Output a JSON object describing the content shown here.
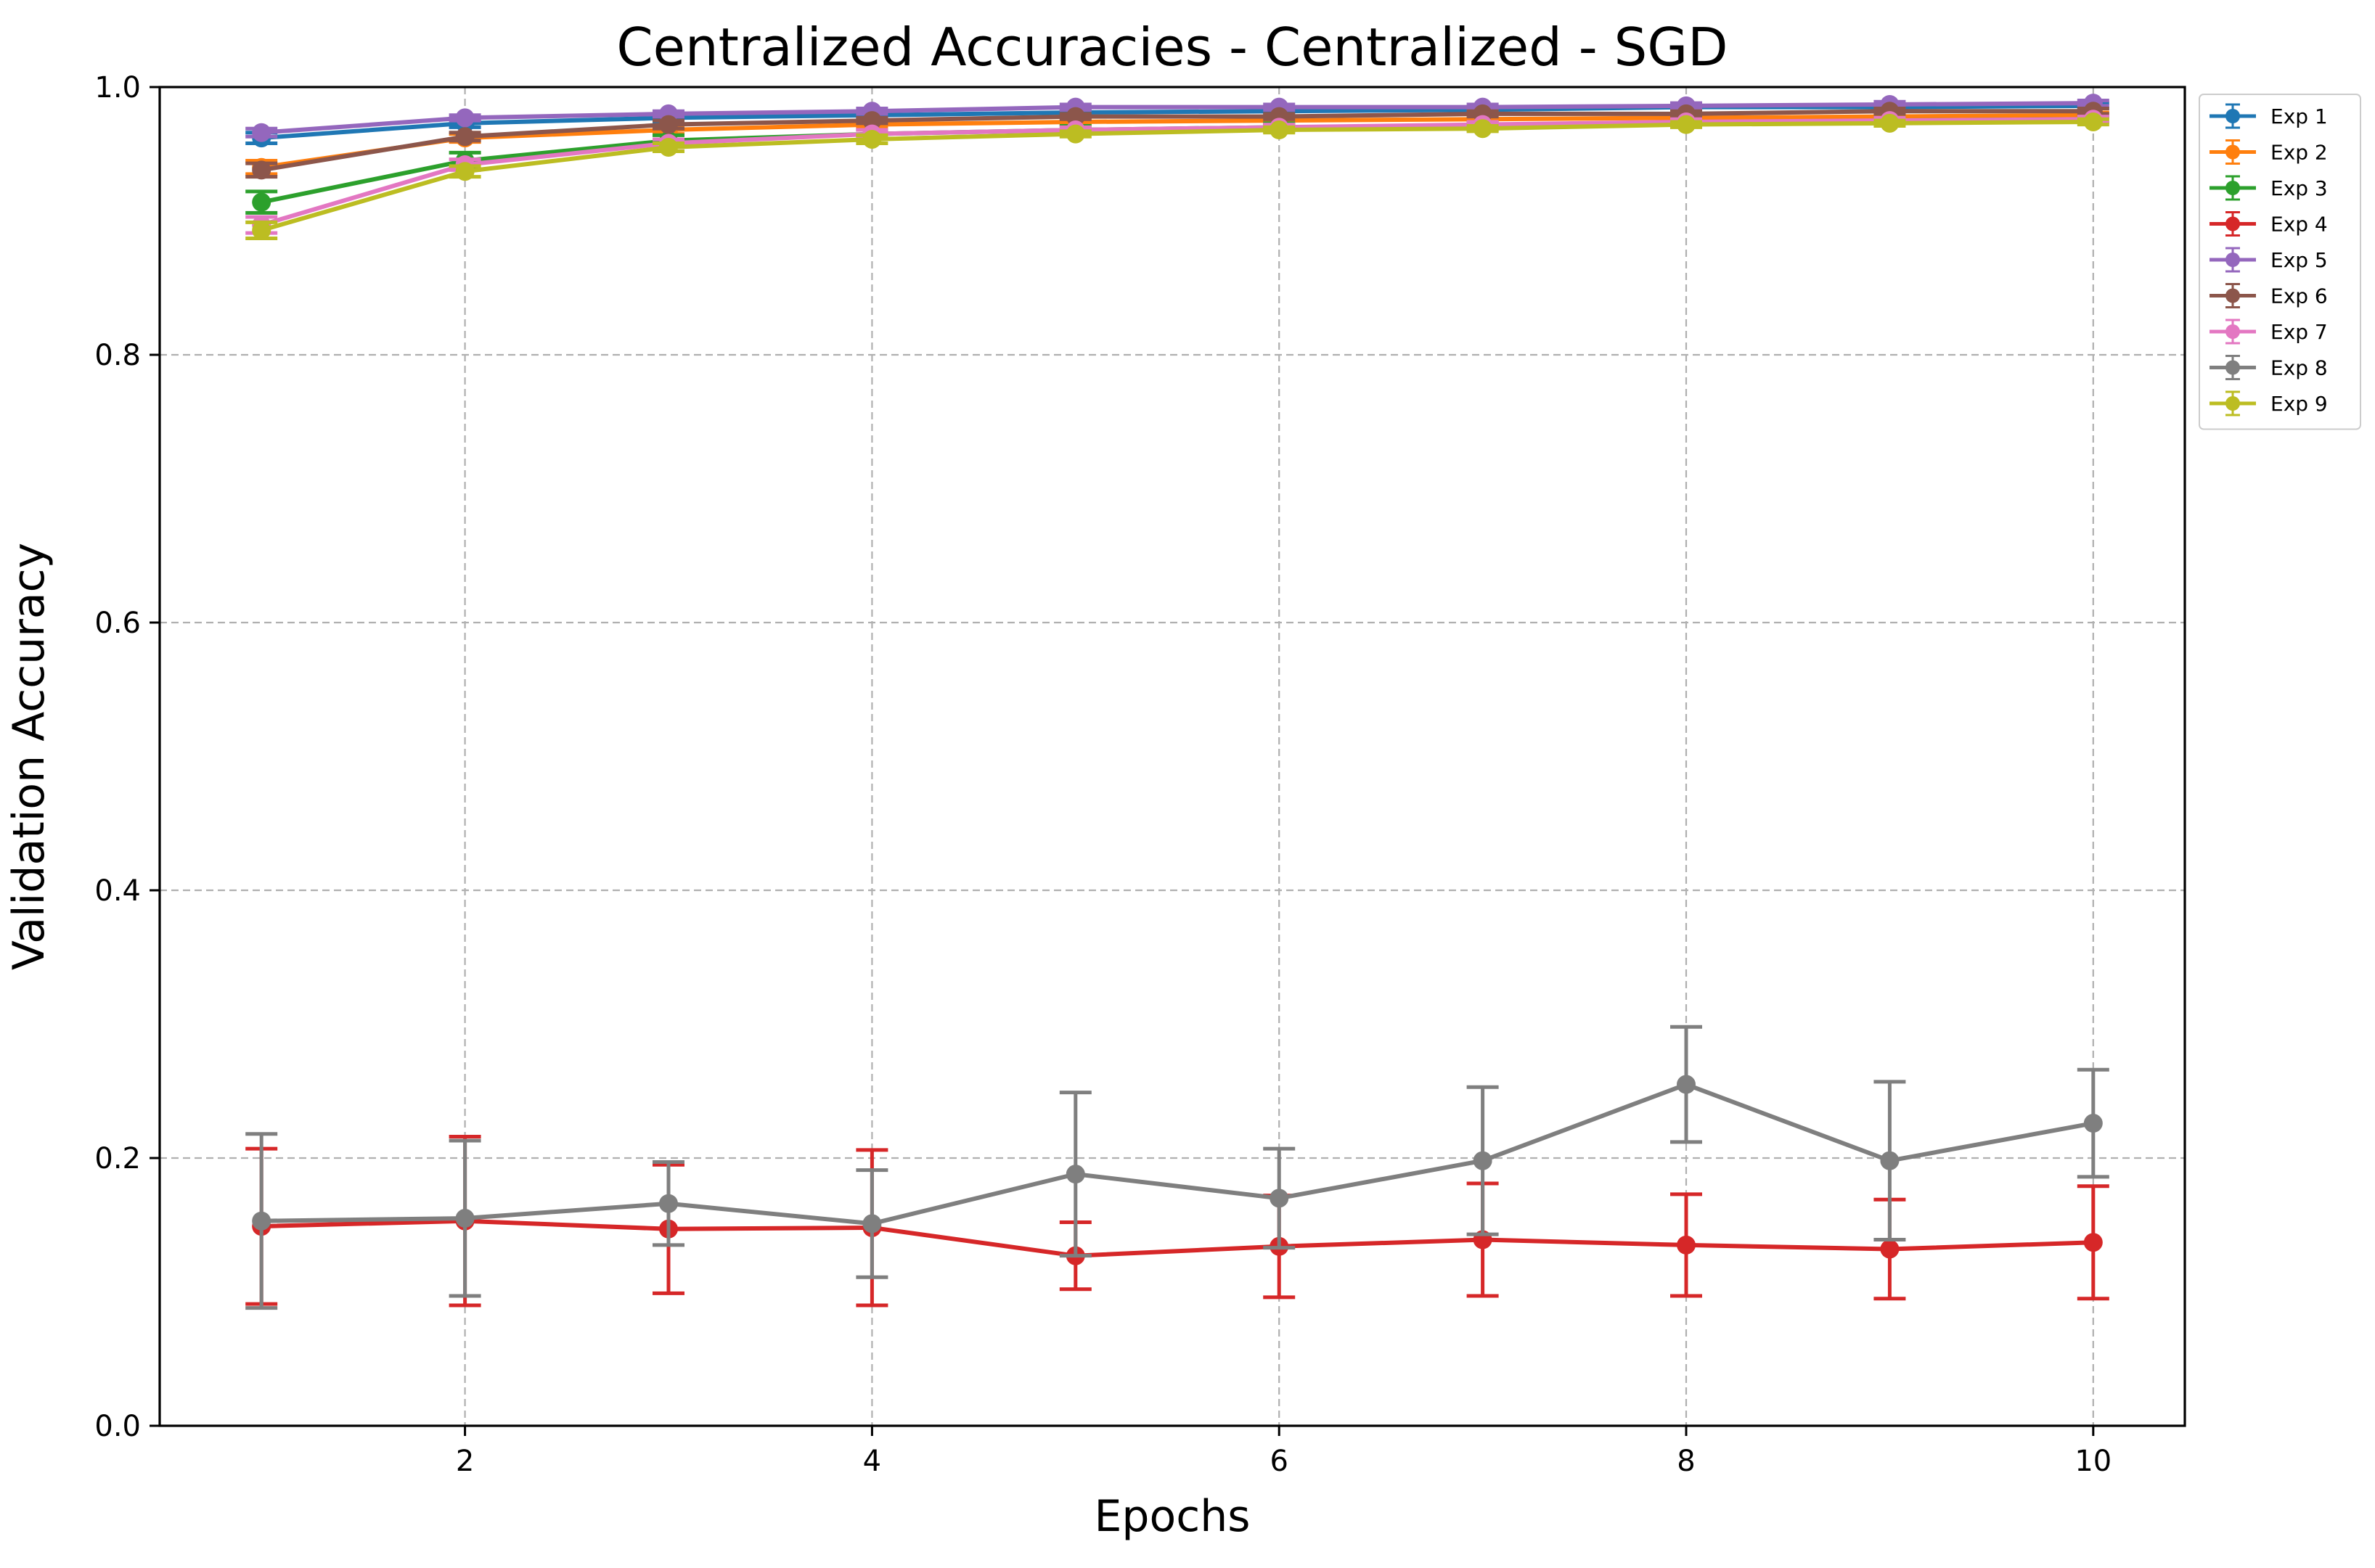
{
  "chart_data": {
    "type": "line",
    "title": "Centralized Accuracies - Centralized - SGD",
    "xlabel": "Epochs",
    "ylabel": "Validation Accuracy",
    "xlim": [
      0.5,
      10.45
    ],
    "ylim": [
      0.0,
      1.0
    ],
    "xticks": [
      2,
      4,
      6,
      8,
      10
    ],
    "xtick_labels": [
      "2",
      "4",
      "6",
      "8",
      "10"
    ],
    "yticks": [
      0.0,
      0.2,
      0.4,
      0.6,
      0.8,
      1.0
    ],
    "ytick_labels": [
      "0.0",
      "0.2",
      "0.4",
      "0.6",
      "0.8",
      "1.0"
    ],
    "grid": true,
    "legend_position": "outside top-right",
    "x": [
      1,
      2,
      3,
      4,
      5,
      6,
      7,
      8,
      9,
      10
    ],
    "series": [
      {
        "name": "Exp 1",
        "color": "#1f77b4",
        "values": [
          0.962,
          0.973,
          0.977,
          0.979,
          0.981,
          0.982,
          0.983,
          0.985,
          0.985,
          0.986
        ],
        "errors": [
          0.004,
          0.003,
          0.003,
          0.002,
          0.002,
          0.002,
          0.002,
          0.002,
          0.002,
          0.002
        ]
      },
      {
        "name": "Exp 2",
        "color": "#ff7f0e",
        "values": [
          0.94,
          0.962,
          0.968,
          0.972,
          0.974,
          0.975,
          0.976,
          0.977,
          0.978,
          0.979
        ],
        "errors": [
          0.005,
          0.003,
          0.003,
          0.002,
          0.002,
          0.002,
          0.002,
          0.002,
          0.002,
          0.002
        ]
      },
      {
        "name": "Exp 3",
        "color": "#2ca02c",
        "values": [
          0.914,
          0.945,
          0.96,
          0.965,
          0.968,
          0.97,
          0.971,
          0.973,
          0.975,
          0.976
        ],
        "errors": [
          0.008,
          0.006,
          0.004,
          0.003,
          0.003,
          0.003,
          0.003,
          0.002,
          0.002,
          0.002
        ]
      },
      {
        "name": "Exp 4",
        "color": "#d62728",
        "values": [
          0.149,
          0.153,
          0.147,
          0.148,
          0.127,
          0.134,
          0.139,
          0.135,
          0.132,
          0.137
        ],
        "errors": [
          0.058,
          0.063,
          0.048,
          0.058,
          0.025,
          0.038,
          0.042,
          0.038,
          0.037,
          0.042
        ]
      },
      {
        "name": "Exp 5",
        "color": "#9467bd",
        "values": [
          0.966,
          0.977,
          0.98,
          0.982,
          0.985,
          0.985,
          0.985,
          0.986,
          0.987,
          0.988
        ],
        "errors": [
          0.003,
          0.002,
          0.002,
          0.002,
          0.002,
          0.002,
          0.002,
          0.002,
          0.002,
          0.002
        ]
      },
      {
        "name": "Exp 6",
        "color": "#8c564b",
        "values": [
          0.938,
          0.963,
          0.972,
          0.975,
          0.978,
          0.978,
          0.98,
          0.98,
          0.982,
          0.982
        ],
        "errors": [
          0.005,
          0.003,
          0.003,
          0.002,
          0.002,
          0.002,
          0.002,
          0.002,
          0.002,
          0.002
        ]
      },
      {
        "name": "Exp 7",
        "color": "#e377c2",
        "values": [
          0.897,
          0.942,
          0.958,
          0.965,
          0.968,
          0.97,
          0.972,
          0.974,
          0.975,
          0.976
        ],
        "errors": [
          0.006,
          0.004,
          0.003,
          0.003,
          0.002,
          0.002,
          0.002,
          0.002,
          0.002,
          0.002
        ]
      },
      {
        "name": "Exp 8",
        "color": "#7f7f7f",
        "values": [
          0.153,
          0.155,
          0.166,
          0.151,
          0.188,
          0.17,
          0.198,
          0.255,
          0.198,
          0.226
        ],
        "errors": [
          0.065,
          0.058,
          0.031,
          0.04,
          0.061,
          0.037,
          0.055,
          0.043,
          0.059,
          0.04
        ]
      },
      {
        "name": "Exp 9",
        "color": "#bcbd22",
        "values": [
          0.893,
          0.937,
          0.955,
          0.961,
          0.965,
          0.968,
          0.969,
          0.972,
          0.973,
          0.974
        ],
        "errors": [
          0.006,
          0.004,
          0.003,
          0.003,
          0.002,
          0.002,
          0.002,
          0.002,
          0.002,
          0.002
        ]
      }
    ]
  }
}
